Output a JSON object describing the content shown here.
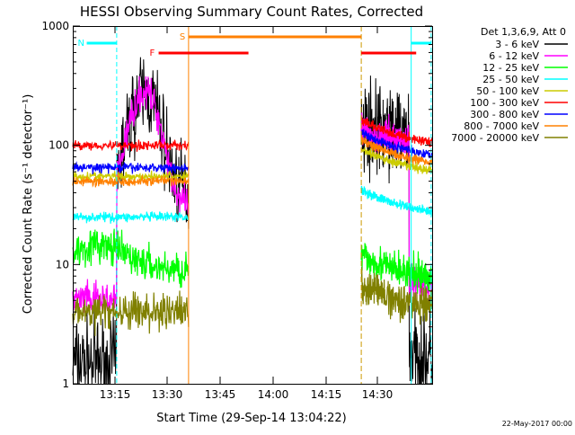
{
  "chart_data": {
    "type": "line",
    "title": "HESSI Observing Summary Count Rates, Corrected",
    "xlabel": "Start Time (29-Sep-14 13:04:22)",
    "ylabel": "Corrected Count Rate (s⁻¹ detector⁻¹)",
    "yscale": "log",
    "ylim": [
      1,
      1000
    ],
    "xlim_minutes": [
      5.6,
      41.6
    ],
    "x_ticks": [
      {
        "label": "13:15",
        "min": 10.6
      },
      {
        "label": "13:30",
        "min": 25.6
      },
      {
        "label": "13:45",
        "min": 40.6
      },
      {
        "label": "14:00",
        "min": 55.6
      },
      {
        "label": "14:15",
        "min": 70.6
      },
      {
        "label": "14:30",
        "min": 85.6
      }
    ],
    "x_ticks_note": "minutes after 13:04:22",
    "y_ticks": [
      {
        "label": "1",
        "v": 1
      },
      {
        "label": "10",
        "v": 10
      },
      {
        "label": "100",
        "v": 100
      },
      {
        "label": "1000",
        "v": 1000
      }
    ],
    "legend_header": "Det 1,3,6,9, Att 0",
    "series": [
      {
        "name": "3 - 6 keV",
        "color": "#000000",
        "before": 1.5,
        "after": 1.5
      },
      {
        "name": "6 - 12 keV",
        "color": "#ff00ff",
        "before": 5,
        "after": 6
      },
      {
        "name": "12 - 25 keV",
        "color": "#00ff00",
        "before": 9,
        "after": 7
      },
      {
        "name": "25 - 50 keV",
        "color": "#00ffff",
        "before": 25,
        "after": 25
      },
      {
        "name": "50 - 100 keV",
        "color": "#cccc00",
        "before": 55,
        "after": 55
      },
      {
        "name": "100 - 300 keV",
        "color": "#ff0000",
        "before": 100,
        "after": 95
      },
      {
        "name": "300 - 800 keV",
        "color": "#0000ff",
        "before": 65,
        "after": 75
      },
      {
        "name": "800 - 7000 keV",
        "color": "#ff8000",
        "before": 50,
        "after": 65
      },
      {
        "name": "7000 - 20000 keV",
        "color": "#808000",
        "before": 4,
        "after": 4
      }
    ],
    "flag_bars": [
      {
        "label": "N",
        "color": "#00ffff",
        "segments": [
          [
            7.0,
            10.0
          ],
          [
            39.5,
            41.5
          ]
        ]
      },
      {
        "label": "S",
        "color": "#ff8000",
        "segments": [
          [
            17.2,
            34.5
          ]
        ]
      },
      {
        "label": "F",
        "color": "#ff0000",
        "segments": [
          [
            14.2,
            23.2
          ],
          [
            34.5,
            40.0
          ]
        ]
      }
    ],
    "footer_date": "22-May-2017 00:00"
  }
}
